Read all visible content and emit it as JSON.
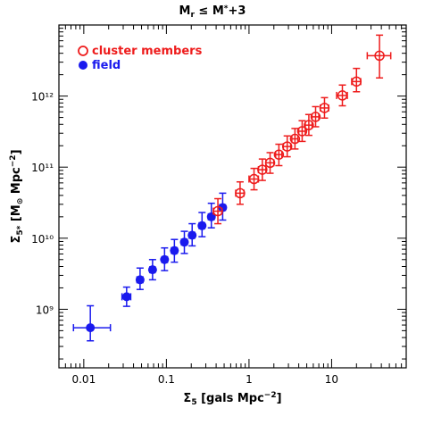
{
  "chart_data": {
    "type": "scatter",
    "title": "M_r ≤ M*+3",
    "xlabel": "Σ₅ [gals Mpc⁻²]",
    "ylabel": "Σ₅* [M⊙ Mpc⁻²]",
    "xscale": "log",
    "yscale": "log",
    "xlim": [
      0.005,
      80
    ],
    "ylim": [
      150000000.0,
      10000000000000.0
    ],
    "x_ticks": [
      {
        "value": 0.01,
        "label": "0.01"
      },
      {
        "value": 0.1,
        "label": "0.1"
      },
      {
        "value": 1,
        "label": "1"
      },
      {
        "value": 10,
        "label": "10"
      }
    ],
    "y_ticks": [
      {
        "value": 1000000000.0,
        "label": "10⁹"
      },
      {
        "value": 10000000000.0,
        "label": "10¹⁰"
      },
      {
        "value": 100000000000.0,
        "label": "10¹¹"
      },
      {
        "value": 1000000000000.0,
        "label": "10¹²"
      }
    ],
    "legend_position": "top-left",
    "series": [
      {
        "name": "field",
        "color": "#1a1aee",
        "marker": "filled-circle",
        "points": [
          {
            "x": 0.012,
            "y": 550000000.0,
            "xerr": [
              0.0075,
              0.021
            ],
            "yerr": [
              360000000.0,
              1120000000.0
            ]
          },
          {
            "x": 0.033,
            "y": 1500000000.0,
            "xerr": [
              0.029,
              0.037
            ],
            "yerr": [
              1100000000.0,
              2050000000.0
            ]
          },
          {
            "x": 0.048,
            "y": 2600000000.0,
            "xerr": [
              0.044,
              0.052
            ],
            "yerr": [
              1900000000.0,
              3800000000.0
            ]
          },
          {
            "x": 0.068,
            "y": 3600000000.0,
            "xerr": [
              0.063,
              0.073
            ],
            "yerr": [
              2600000000.0,
              5000000000.0
            ]
          },
          {
            "x": 0.095,
            "y": 5000000000.0,
            "xerr": [
              0.088,
              0.103
            ],
            "yerr": [
              3500000000.0,
              7300000000.0
            ]
          },
          {
            "x": 0.125,
            "y": 6700000000.0,
            "xerr": [
              0.115,
              0.135
            ],
            "yerr": [
              4600000000.0,
              9600000000.0
            ]
          },
          {
            "x": 0.165,
            "y": 8800000000.0,
            "xerr": [
              0.152,
              0.178
            ],
            "yerr": [
              6100000000.0,
              12500000000.0
            ]
          },
          {
            "x": 0.205,
            "y": 11000000000.0,
            "xerr": [
              0.189,
              0.221
            ],
            "yerr": [
              7800000000.0,
              16000000000.0
            ]
          },
          {
            "x": 0.27,
            "y": 15000000000.0,
            "xerr": [
              0.249,
              0.291
            ],
            "yerr": [
              10500000000.0,
              23000000000.0
            ]
          },
          {
            "x": 0.35,
            "y": 20000000000.0,
            "xerr": [
              0.322,
              0.378
            ],
            "yerr": [
              14000000000.0,
              31000000000.0
            ]
          },
          {
            "x": 0.48,
            "y": 27000000000.0,
            "xerr": [
              0.442,
              0.518
            ],
            "yerr": [
              18000000000.0,
              43000000000.0
            ]
          }
        ]
      },
      {
        "name": "cluster members",
        "color": "#ee1c1c",
        "marker": "open-circle",
        "points": [
          {
            "x": 0.42,
            "y": 24000000000.0,
            "xerr": [
              0.37,
              0.47
            ],
            "yerr": [
              16000000000.0,
              36000000000.0
            ]
          },
          {
            "x": 0.78,
            "y": 43000000000.0,
            "xerr": [
              0.69,
              0.87
            ],
            "yerr": [
              30000000000.0,
              62000000000.0
            ]
          },
          {
            "x": 1.15,
            "y": 68000000000.0,
            "xerr": [
              1.0,
              1.3
            ],
            "yerr": [
              48000000000.0,
              96000000000.0
            ]
          },
          {
            "x": 1.45,
            "y": 92000000000.0,
            "xerr": [
              1.3,
              1.6
            ],
            "yerr": [
              65000000000.0,
              130000000000.0
            ]
          },
          {
            "x": 1.8,
            "y": 115000000000.0,
            "xerr": [
              1.6,
              2.0
            ],
            "yerr": [
              82000000000.0,
              160000000000.0
            ]
          },
          {
            "x": 2.3,
            "y": 150000000000.0,
            "xerr": [
              2.1,
              2.5
            ],
            "yerr": [
              105000000000.0,
              210000000000.0
            ]
          },
          {
            "x": 2.9,
            "y": 195000000000.0,
            "xerr": [
              2.6,
              3.2
            ],
            "yerr": [
              140000000000.0,
              275000000000.0
            ]
          },
          {
            "x": 3.6,
            "y": 250000000000.0,
            "xerr": [
              3.3,
              3.9
            ],
            "yerr": [
              180000000000.0,
              350000000000.0
            ]
          },
          {
            "x": 4.4,
            "y": 320000000000.0,
            "xerr": [
              4.0,
              4.8
            ],
            "yerr": [
              230000000000.0,
              450000000000.0
            ]
          },
          {
            "x": 5.3,
            "y": 390000000000.0,
            "xerr": [
              4.8,
              5.8
            ],
            "yerr": [
              280000000000.0,
              550000000000.0
            ]
          },
          {
            "x": 6.4,
            "y": 510000000000.0,
            "xerr": [
              5.8,
              7.0
            ],
            "yerr": [
              370000000000.0,
              710000000000.0
            ]
          },
          {
            "x": 8.2,
            "y": 680000000000.0,
            "xerr": [
              7.3,
              9.2
            ],
            "yerr": [
              490000000000.0,
              950000000000.0
            ]
          },
          {
            "x": 13.5,
            "y": 1020000000000.0,
            "xerr": [
              11.5,
              15.5
            ],
            "yerr": [
              730000000000.0,
              1430000000000.0
            ]
          },
          {
            "x": 20,
            "y": 1600000000000.0,
            "xerr": [
              17.5,
              22.5
            ],
            "yerr": [
              1150000000000.0,
              2450000000000.0
            ]
          },
          {
            "x": 38,
            "y": 3700000000000.0,
            "xerr": [
              27,
              52
            ],
            "yerr": [
              1800000000000.0,
              7200000000000.0
            ]
          }
        ]
      }
    ]
  }
}
